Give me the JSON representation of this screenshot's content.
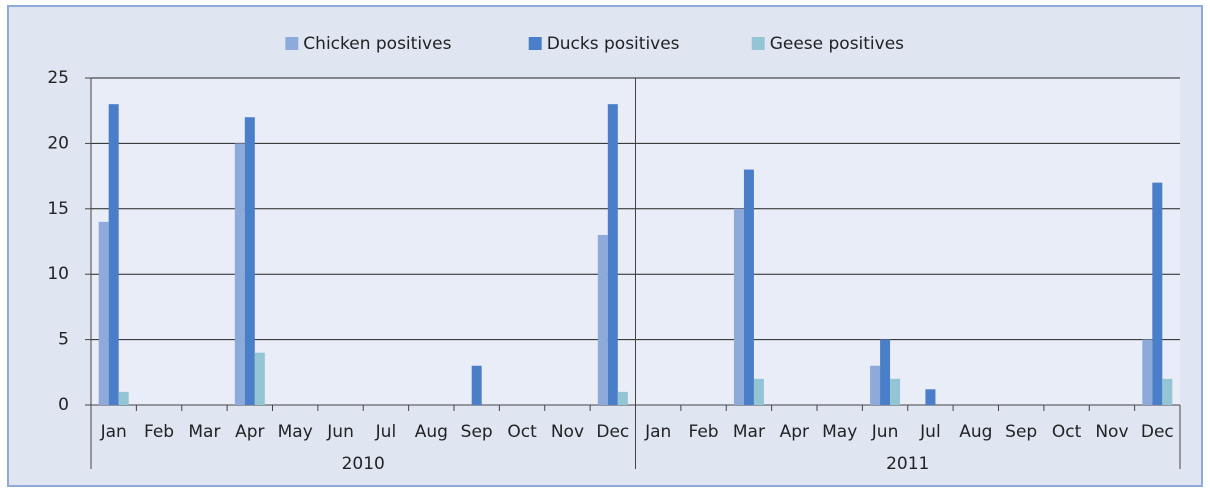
{
  "chart_data": {
    "type": "bar",
    "groups": [
      {
        "name": "2010",
        "categories": [
          "Jan",
          "Feb",
          "Mar",
          "Apr",
          "May",
          "Jun",
          "Jul",
          "Aug",
          "Sep",
          "Oct",
          "Nov",
          "Dec"
        ]
      },
      {
        "name": "2011",
        "categories": [
          "Jan",
          "Feb",
          "Mar",
          "Apr",
          "May",
          "Jun",
          "Jul",
          "Aug",
          "Sep",
          "Oct",
          "Nov",
          "Dec"
        ]
      }
    ],
    "series": [
      {
        "name": "Chicken positives",
        "color": "#8eaadb",
        "values": [
          14,
          0,
          0,
          20,
          0,
          0,
          0,
          0,
          0,
          0,
          0,
          13,
          0,
          0,
          15,
          0,
          0,
          3,
          0,
          0,
          0,
          0,
          0,
          5
        ]
      },
      {
        "name": "Ducks positives",
        "color": "#4a7ec8",
        "values": [
          23,
          0,
          0,
          22,
          0,
          0,
          0,
          0,
          3,
          0,
          0,
          23,
          0,
          0,
          18,
          0,
          0,
          5,
          1.2,
          0,
          0,
          0,
          0,
          17
        ]
      },
      {
        "name": "Geese positives",
        "color": "#93c5d4",
        "values": [
          1,
          0,
          0,
          4,
          0,
          0,
          0,
          0,
          0,
          0,
          0,
          1,
          0,
          0,
          2,
          0,
          0,
          2,
          0,
          0,
          0,
          0,
          0,
          2
        ]
      }
    ],
    "ylim": [
      0,
      25
    ],
    "yticks": [
      0,
      5,
      10,
      15,
      20,
      25
    ],
    "grid": true,
    "legend": "top"
  }
}
